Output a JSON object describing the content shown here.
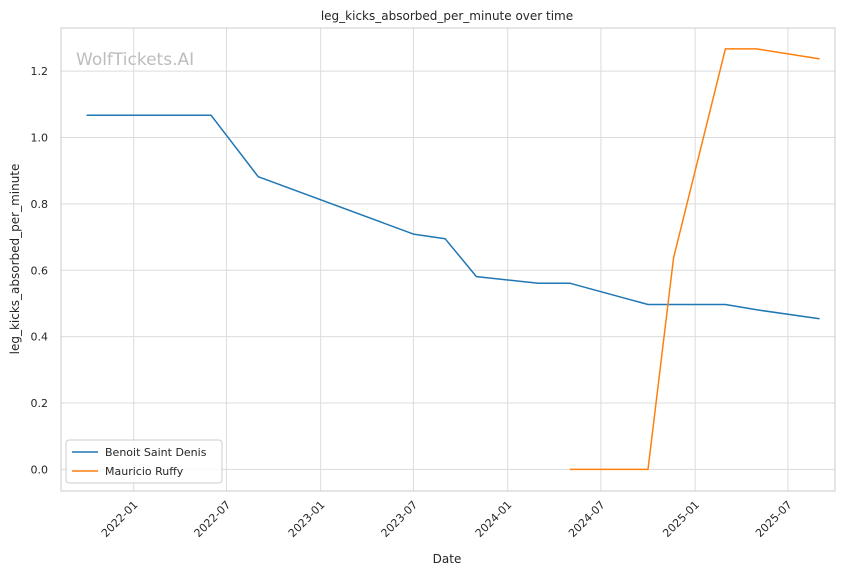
{
  "chart_data": {
    "type": "line",
    "title": "leg_kicks_absorbed_per_minute over time",
    "xlabel": "Date",
    "ylabel": "leg_kicks_absorbed_per_minute",
    "watermark": "WolfTickets.AI",
    "xlim": [
      "2021-08-12",
      "2025-10-01"
    ],
    "ylim": [
      -0.065,
      1.33
    ],
    "x_ticks": [
      "2022-01",
      "2022-07",
      "2023-01",
      "2023-07",
      "2024-01",
      "2024-07",
      "2025-01",
      "2025-07"
    ],
    "y_ticks": [
      "0.0",
      "0.2",
      "0.4",
      "0.6",
      "0.8",
      "1.0",
      "1.2"
    ],
    "grid": true,
    "legend_position": "lower-left",
    "series": [
      {
        "name": "Benoit Saint Denis",
        "color": "#1f77b4",
        "points": [
          [
            "2021-10-01",
            1.067
          ],
          [
            "2022-06-01",
            1.067
          ],
          [
            "2022-09-01",
            0.882
          ],
          [
            "2023-07-01",
            0.709
          ],
          [
            "2023-09-01",
            0.695
          ],
          [
            "2023-11-01",
            0.581
          ],
          [
            "2024-03-01",
            0.561
          ],
          [
            "2024-05-01",
            0.561
          ],
          [
            "2024-10-01",
            0.497
          ],
          [
            "2025-03-01",
            0.497
          ],
          [
            "2025-05-01",
            0.481
          ],
          [
            "2025-09-01",
            0.454
          ]
        ]
      },
      {
        "name": "Mauricio Ruffy",
        "color": "#ff7f0e",
        "points": [
          [
            "2024-05-01",
            0.0
          ],
          [
            "2024-10-01",
            0.0
          ],
          [
            "2024-11-20",
            0.638
          ],
          [
            "2025-03-01",
            1.267
          ],
          [
            "2025-05-01",
            1.267
          ],
          [
            "2025-09-01",
            1.237
          ]
        ]
      }
    ]
  }
}
